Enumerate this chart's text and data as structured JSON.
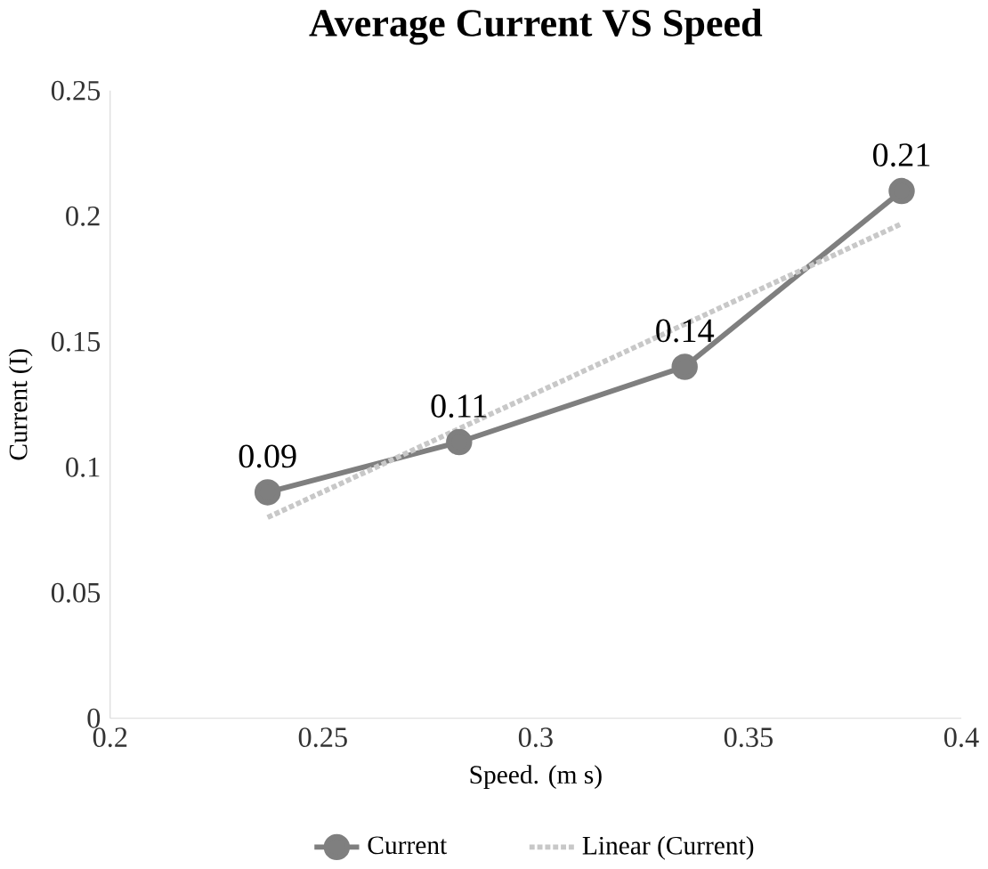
{
  "chart_data": {
    "type": "line",
    "title": "Average Current VS Speed",
    "xlabel": "Speed. (m s)",
    "ylabel": "Current (I)",
    "x": [
      0.237,
      0.282,
      0.335,
      0.386
    ],
    "series": [
      {
        "name": "Current",
        "color": "#7f7f7f",
        "values": [
          0.09,
          0.11,
          0.14,
          0.21
        ],
        "marker": "circle",
        "line_style": "solid",
        "data_labels": true
      },
      {
        "name": "Linear (Current)",
        "color": "#c8c8c8",
        "x": [
          0.237,
          0.386
        ],
        "values": [
          0.08,
          0.197
        ],
        "marker": "none",
        "line_style": "dotted"
      }
    ],
    "xlim": [
      0.2,
      0.4
    ],
    "xticks": [
      0.2,
      0.25,
      0.3,
      0.35,
      0.4
    ],
    "ylim": [
      0,
      0.25
    ],
    "yticks": [
      0,
      0.05,
      0.1,
      0.15,
      0.2,
      0.25
    ],
    "grid": false,
    "legend": "bottom"
  }
}
